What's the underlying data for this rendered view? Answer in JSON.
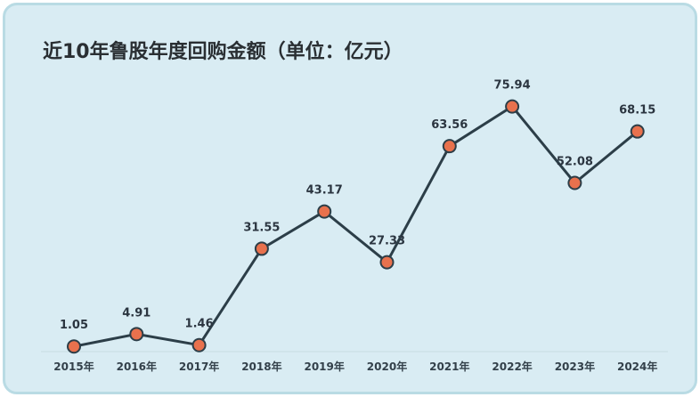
{
  "chart_data": {
    "type": "line",
    "title": "近10年鲁股年度回购金额（单位：亿元）",
    "categories": [
      "2015年",
      "2016年",
      "2017年",
      "2018年",
      "2019年",
      "2020年",
      "2021年",
      "2022年",
      "2023年",
      "2024年"
    ],
    "series": [
      {
        "values": [
          1.05,
          4.91,
          1.46,
          31.55,
          43.17,
          27.33,
          63.56,
          75.94,
          52.08,
          68.15
        ]
      }
    ],
    "data_labels": [
      "1.05",
      "4.91",
      "1.46",
      "31.55",
      "43.17",
      "27.33",
      "63.56",
      "75.94",
      "52.08",
      "68.15"
    ],
    "ylim": [
      0,
      80
    ],
    "grid": false,
    "legend": "none",
    "colors": {
      "background": "#d9ecf3",
      "border": "#b9dbe4",
      "line": "#2c3e48",
      "marker_fill": "#e8714d",
      "marker_stroke": "#2c3e48",
      "axis": "#c8dbe1"
    }
  }
}
